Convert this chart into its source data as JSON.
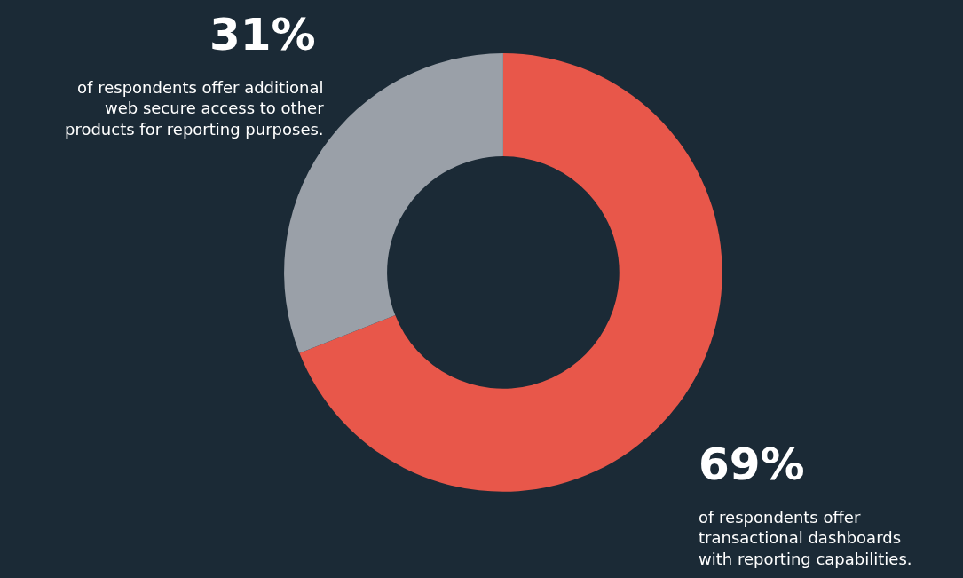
{
  "chart_data": {
    "type": "donut",
    "categories": [
      "of respondents offer\ntransactional dashboards\nwith reporting capabilities.",
      "of respondents offer additional\nweb secure access to other\nproducts for reporting purposes."
    ],
    "values": [
      69,
      31
    ],
    "value_labels": [
      "69%",
      "31%"
    ],
    "colors": [
      "#e8574a",
      "#9aa0a8"
    ],
    "legend": false
  }
}
